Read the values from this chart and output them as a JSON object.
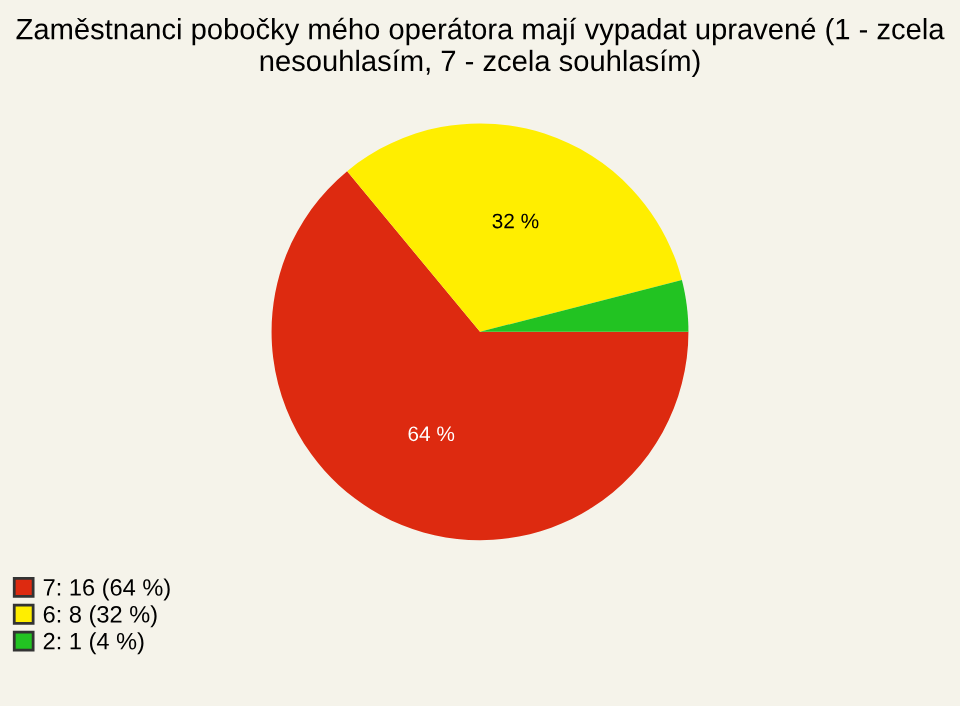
{
  "chart_data": {
    "type": "pie",
    "title": "Zaměstnanci pobočky mého operátora mají vypadat upravené (1 - zcela nesouhlasím, 7 - zcela souhlasím)",
    "categories": [
      "7: 16 (64 %)",
      "6: 8 (32 %)",
      "2: 1 (4 %)"
    ],
    "values": [
      64,
      32,
      4
    ],
    "colors": [
      "#dd2a10",
      "#ffee00",
      "#22c322"
    ],
    "value_labels": [
      "64 %",
      "32 %",
      null
    ],
    "legend": "bottom left"
  }
}
